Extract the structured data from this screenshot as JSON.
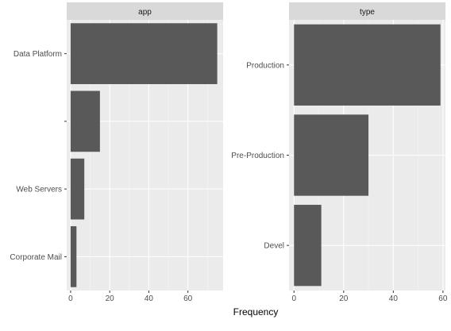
{
  "chart_data": [
    {
      "type": "bar",
      "orientation": "horizontal",
      "panel_title": "app",
      "categories": [
        "Data Platform",
        "",
        "Web Servers",
        "Corporate Mail"
      ],
      "values": [
        75,
        15,
        7,
        3
      ],
      "xlim": [
        -2,
        78
      ],
      "x_ticks": [
        0,
        20,
        40,
        60
      ],
      "x_tick_labels": [
        "0",
        "20",
        "40",
        "60"
      ],
      "grid": true
    },
    {
      "type": "bar",
      "orientation": "horizontal",
      "panel_title": "type",
      "categories": [
        "Production",
        "Pre-Production",
        "Devel"
      ],
      "values": [
        59,
        30,
        11
      ],
      "xlim": [
        -2,
        61
      ],
      "x_ticks": [
        0,
        20,
        40,
        60
      ],
      "x_tick_labels": [
        "0",
        "20",
        "40",
        "60"
      ],
      "grid": true
    }
  ],
  "xlabel": "Frequency",
  "colors": {
    "bar": "#595959",
    "panel_background": "#ebebeb",
    "strip_background": "#d9d9d9",
    "grid_major": "#ffffff",
    "grid_minor": "#f5f5f5",
    "tick_text": "#4d4d4d",
    "axis_title": "#000000"
  }
}
